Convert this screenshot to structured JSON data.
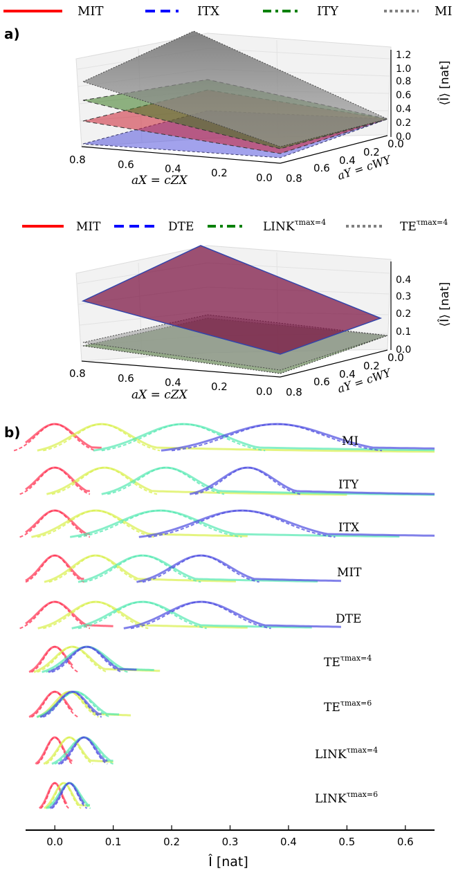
{
  "panels": {
    "a": "a)",
    "b": "b)"
  },
  "legend_top": [
    {
      "label": "MIT",
      "color": "#ff0000",
      "style": "solid"
    },
    {
      "label": "ITX",
      "color": "#0000ff",
      "style": "dashed"
    },
    {
      "label": "ITY",
      "color": "#008000",
      "style": "dashdot"
    },
    {
      "label": "MI",
      "color": "#808080",
      "style": "dotted"
    }
  ],
  "legend_mid": [
    {
      "label": "MIT",
      "color": "#ff0000",
      "style": "solid"
    },
    {
      "label": "DTE",
      "color": "#0000ff",
      "style": "dashed"
    },
    {
      "label": "LINK",
      "sup": "τmax=4",
      "color": "#008000",
      "style": "dashdot"
    },
    {
      "label": "TE",
      "sup": "τmax=4",
      "color": "#808080",
      "style": "dotted"
    }
  ],
  "surface_plots": [
    {
      "zlabel": "⟨Î⟩ [nat]",
      "xlabel": "aX = cZX",
      "ylabel": "aY = cWY",
      "x_ticks": [
        "0.8",
        "0.6",
        "0.4",
        "0.2",
        "0.0"
      ],
      "y_ticks": [
        "0.8",
        "0.6",
        "0.4",
        "0.2",
        "0.0"
      ],
      "z_ticks": [
        "0.0",
        "0.2",
        "0.4",
        "0.6",
        "0.8",
        "1.0",
        "1.2"
      ]
    },
    {
      "zlabel": "⟨Î⟩ [nat]",
      "xlabel": "aX = cZX",
      "ylabel": "aY = cWY",
      "x_ticks": [
        "0.8",
        "0.6",
        "0.4",
        "0.2",
        "0.0"
      ],
      "y_ticks": [
        "0.8",
        "0.6",
        "0.4",
        "0.2",
        "0.0"
      ],
      "z_ticks": [
        "0.0",
        "0.1",
        "0.2",
        "0.3",
        "0.4"
      ]
    }
  ],
  "chart_data": {
    "type": "line",
    "xlabel": "Î [nat]",
    "xlim": [
      -0.05,
      0.65
    ],
    "x_ticks": [
      "0.0",
      "0.1",
      "0.2",
      "0.3",
      "0.4",
      "0.5",
      "0.6"
    ],
    "colors": [
      "#ff2f4f",
      "#d8f04a",
      "#52e8b0",
      "#4a4ae0"
    ],
    "rows": [
      {
        "label": "MI",
        "peaks": [
          0.0,
          0.08,
          0.22,
          0.38
        ],
        "widths": [
          0.035,
          0.05,
          0.07,
          0.09
        ],
        "heights": [
          1.0,
          1.0,
          1.0,
          1.0
        ],
        "ends": [
          0.08,
          0.65,
          0.65,
          0.65
        ]
      },
      {
        "label": "ITY",
        "peaks": [
          0.0,
          0.085,
          0.19,
          0.33
        ],
        "widths": [
          0.03,
          0.045,
          0.05,
          0.045
        ],
        "heights": [
          1.0,
          1.0,
          1.0,
          1.0
        ],
        "ends": [
          0.06,
          0.5,
          0.65,
          0.65
        ]
      },
      {
        "label": "ITX",
        "peaks": [
          0.0,
          0.07,
          0.18,
          0.32
        ],
        "widths": [
          0.03,
          0.05,
          0.07,
          0.08
        ],
        "heights": [
          1.0,
          1.0,
          1.0,
          1.0
        ],
        "ends": [
          0.06,
          0.33,
          0.59,
          0.65
        ]
      },
      {
        "label": "MIT",
        "peaks": [
          0.0,
          0.07,
          0.15,
          0.25
        ],
        "widths": [
          0.025,
          0.04,
          0.05,
          0.05
        ],
        "heights": [
          1.0,
          1.0,
          1.0,
          1.0
        ],
        "ends": [
          0.05,
          0.31,
          0.45,
          0.49
        ]
      },
      {
        "label": "DTE",
        "peaks": [
          0.0,
          0.07,
          0.15,
          0.25
        ],
        "widths": [
          0.03,
          0.045,
          0.055,
          0.06
        ],
        "heights": [
          1.0,
          1.0,
          1.0,
          1.0
        ],
        "ends": [
          0.1,
          0.33,
          0.44,
          0.49
        ]
      },
      {
        "label": "TE",
        "sup": "τmax=4",
        "peaks": [
          0.0,
          0.03,
          0.055,
          0.055
        ],
        "widths": [
          0.02,
          0.03,
          0.035,
          0.03
        ],
        "heights": [
          1.0,
          1.0,
          1.0,
          1.0
        ],
        "ends": [
          0.03,
          0.18,
          0.17,
          0.14
        ]
      },
      {
        "label": "TE",
        "sup": "τmax=6",
        "peaks": [
          0.0,
          0.025,
          0.035,
          0.03
        ],
        "widths": [
          0.02,
          0.025,
          0.03,
          0.025
        ],
        "heights": [
          1.0,
          1.0,
          1.0,
          1.0
        ],
        "ends": [
          0.03,
          0.13,
          0.11,
          0.08
        ]
      },
      {
        "label": "LINK",
        "sup": "τmax=4",
        "peaks": [
          0.0,
          0.025,
          0.05,
          0.05
        ],
        "widths": [
          0.015,
          0.02,
          0.025,
          0.02
        ],
        "heights": [
          1.0,
          1.0,
          1.0,
          1.0
        ],
        "ends": [
          0.03,
          0.1,
          0.1,
          0.09
        ]
      },
      {
        "label": "LINK",
        "sup": "τmax=6",
        "peaks": [
          0.0,
          0.015,
          0.025,
          0.025
        ],
        "widths": [
          0.012,
          0.015,
          0.018,
          0.015
        ],
        "heights": [
          1.0,
          1.0,
          1.0,
          1.0
        ],
        "ends": [
          0.02,
          0.06,
          0.06,
          0.05
        ]
      }
    ]
  }
}
